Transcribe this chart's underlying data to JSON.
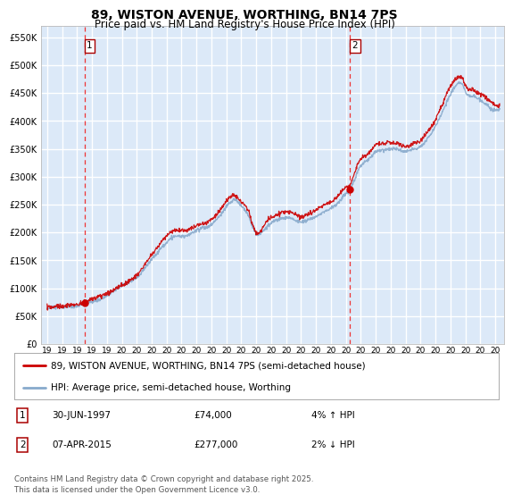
{
  "title": "89, WISTON AVENUE, WORTHING, BN14 7PS",
  "subtitle": "Price paid vs. HM Land Registry's House Price Index (HPI)",
  "ylabel_ticks": [
    "£0",
    "£50K",
    "£100K",
    "£150K",
    "£200K",
    "£250K",
    "£300K",
    "£350K",
    "£400K",
    "£450K",
    "£500K",
    "£550K"
  ],
  "ytick_values": [
    0,
    50000,
    100000,
    150000,
    200000,
    250000,
    300000,
    350000,
    400000,
    450000,
    500000,
    550000
  ],
  "ylim": [
    0,
    570000
  ],
  "xlim_start": 1994.6,
  "xlim_end": 2025.6,
  "marker1_x": 1997.5,
  "marker1_y": 74000,
  "marker2_x": 2015.27,
  "marker2_y": 277000,
  "legend_line1": "89, WISTON AVENUE, WORTHING, BN14 7PS (semi-detached house)",
  "legend_line2": "HPI: Average price, semi-detached house, Worthing",
  "note1_label": "1",
  "note1_date": "30-JUN-1997",
  "note1_price": "£74,000",
  "note1_change": "4% ↑ HPI",
  "note2_label": "2",
  "note2_date": "07-APR-2015",
  "note2_price": "£277,000",
  "note2_change": "2% ↓ HPI",
  "footer": "Contains HM Land Registry data © Crown copyright and database right 2025.\nThis data is licensed under the Open Government Licence v3.0.",
  "bg_color": "#DCE9F8",
  "grid_color": "white",
  "line_color_red": "#CC0000",
  "line_color_blue": "#88AACC",
  "dashed_color": "#EE3333",
  "title_fontsize": 10,
  "subtitle_fontsize": 8.5,
  "xtick_years": [
    1995,
    1996,
    1997,
    1998,
    1999,
    2000,
    2001,
    2002,
    2003,
    2004,
    2005,
    2006,
    2007,
    2008,
    2009,
    2010,
    2011,
    2012,
    2013,
    2014,
    2015,
    2016,
    2017,
    2018,
    2019,
    2020,
    2021,
    2022,
    2023,
    2024,
    2025
  ]
}
